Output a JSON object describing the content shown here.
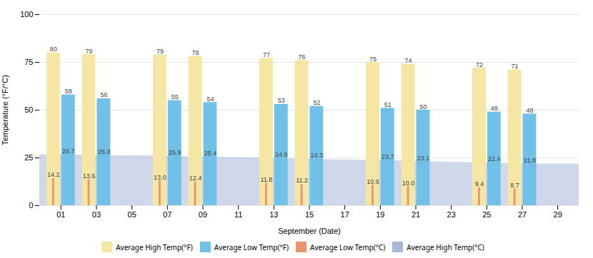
{
  "chart_data": {
    "type": "bar",
    "xlabel": "September (Date)",
    "ylabel": "Temperature (°F/°C)",
    "categories": [
      "01",
      "03",
      "05",
      "07",
      "09",
      "11",
      "13",
      "15",
      "17",
      "19",
      "21",
      "23",
      "25",
      "27",
      "29"
    ],
    "series": [
      {
        "name": "Average High Temp(°F)",
        "type": "bar",
        "color": "#F5E6A3",
        "values": [
          80,
          79,
          null,
          79,
          78,
          null,
          77,
          76,
          null,
          75,
          74,
          null,
          72,
          71,
          null
        ]
      },
      {
        "name": "Average Low Temp(°F)",
        "type": "bar",
        "color": "#70C0E8",
        "values": [
          58,
          56,
          null,
          55,
          54,
          null,
          53,
          52,
          null,
          51,
          50,
          null,
          49,
          48,
          null
        ]
      },
      {
        "name": "Average Low Temp(°C)",
        "type": "bar",
        "color": "#E8956D",
        "values": [
          14.2,
          13.6,
          null,
          13.0,
          12.4,
          null,
          11.8,
          11.2,
          null,
          10.6,
          10.0,
          null,
          9.4,
          8.7,
          null
        ],
        "value_labels": [
          "14.2",
          "13.6",
          null,
          "13.0",
          "12.4",
          null,
          "11.8",
          "11.2",
          null,
          "10.6",
          "10.0",
          null,
          "9.4",
          "8.7",
          null
        ]
      },
      {
        "name": "Average High Temp(°C)",
        "type": "area",
        "color": "#A8B8D8",
        "values": [
          26.7,
          26.3,
          null,
          25.9,
          25.4,
          null,
          24.9,
          24.3,
          null,
          23.7,
          23.1,
          null,
          22.4,
          21.8,
          null
        ]
      }
    ],
    "ylim": [
      0,
      100
    ],
    "yticks": [
      0,
      25,
      50,
      75,
      100
    ],
    "grid": true,
    "data_labels": true,
    "legend": "bottom"
  }
}
